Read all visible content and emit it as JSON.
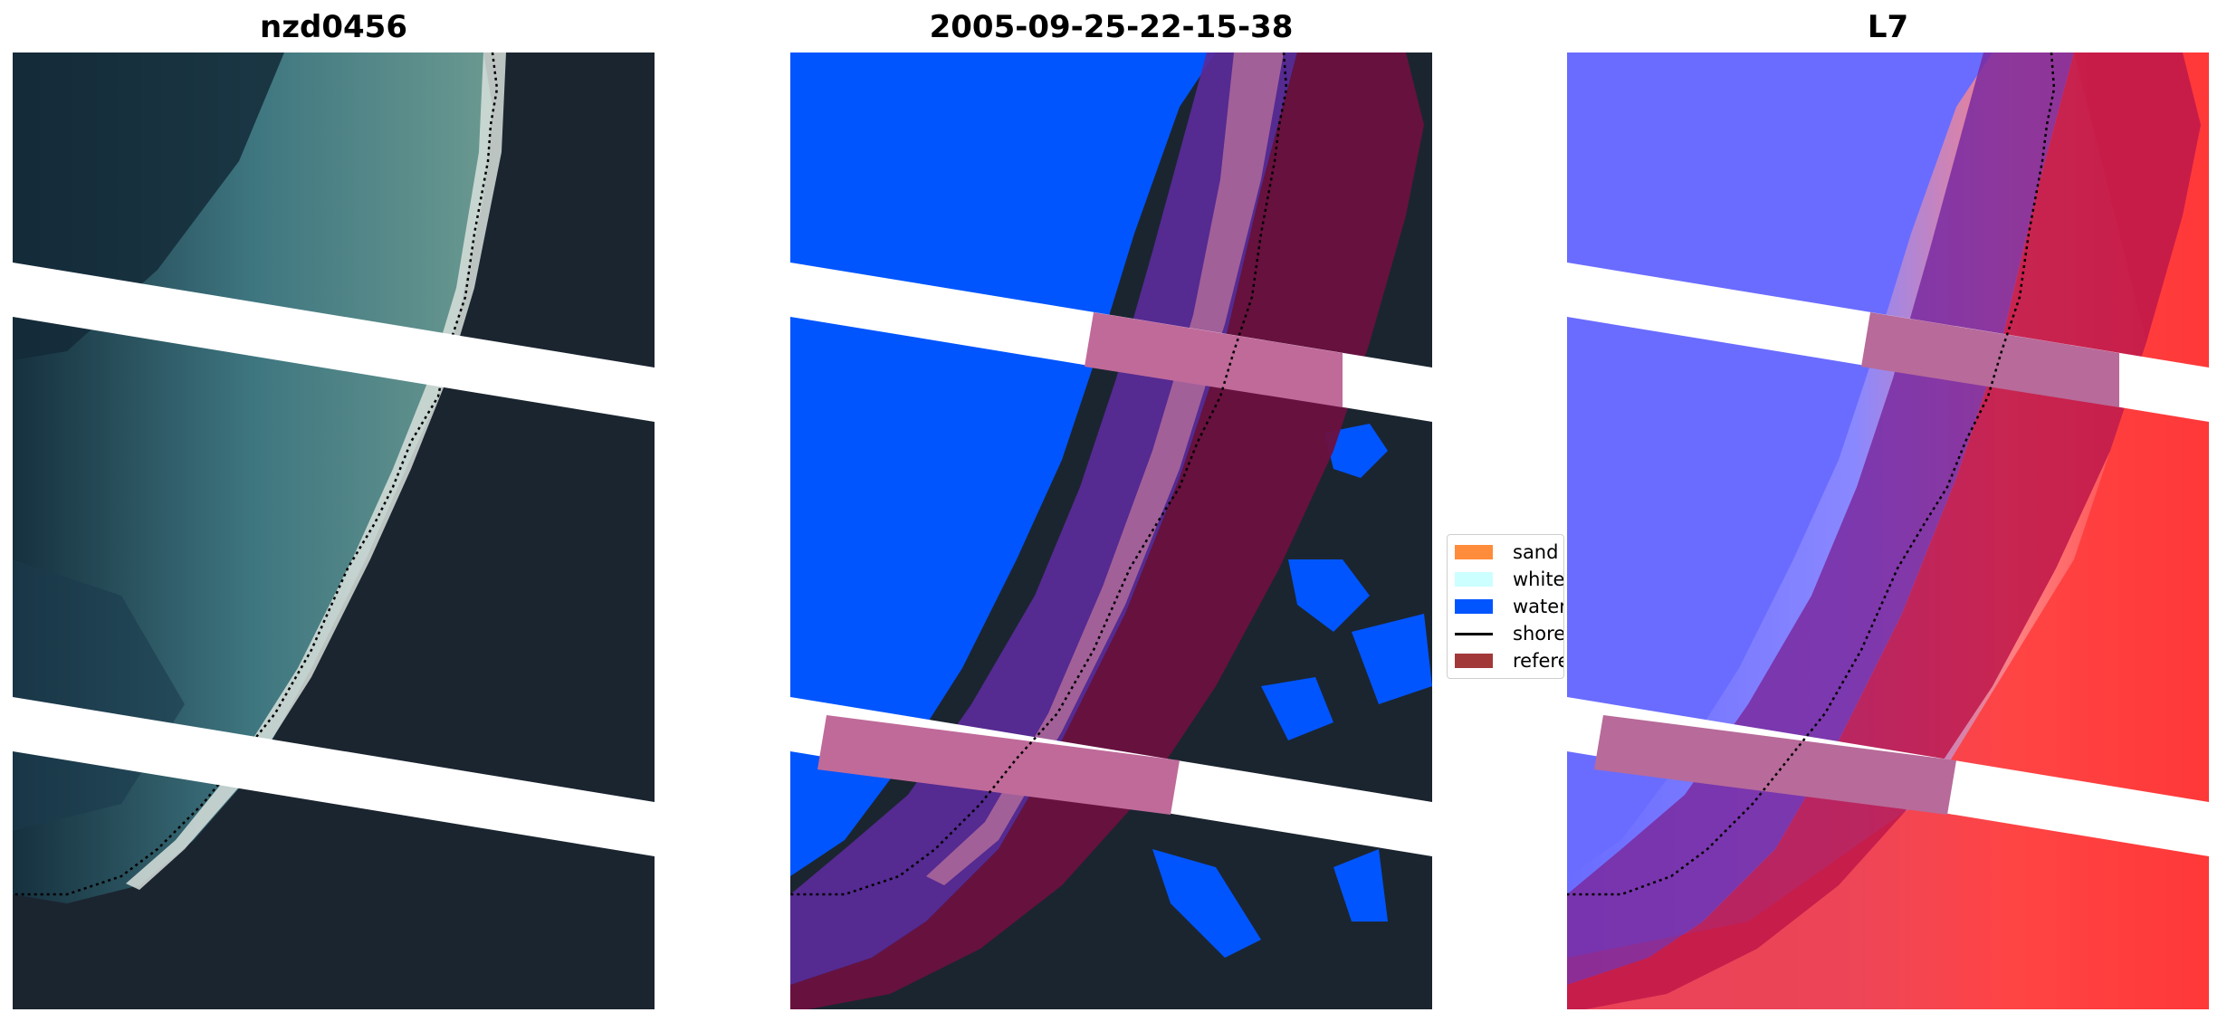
{
  "panels": [
    {
      "title": "nzd0456"
    },
    {
      "title": "2005-09-25-22-15-38"
    },
    {
      "title": "L7"
    }
  ],
  "legend": {
    "items": [
      {
        "label": "sand",
        "kind": "patch",
        "color": "#ff8c3a"
      },
      {
        "label": "whitewater",
        "kind": "patch",
        "color": "#ccffff"
      },
      {
        "label": "water",
        "kind": "patch",
        "color": "#0055ff"
      },
      {
        "label": "shoreline",
        "kind": "line",
        "color": "#000000"
      },
      {
        "label": "reference",
        "kind": "patch",
        "color": "#a33838"
      }
    ]
  },
  "colors": {
    "land_dark": "#1b2530",
    "sea_teal": "#4f8a8d",
    "water_class": "#0055ff",
    "buffer_purple": "#5a2a9a",
    "buffer_crimson": "#6b1040",
    "stripe_pink": "#c06a9a",
    "index_blue": "#6a6cff",
    "index_red": "#ff3030",
    "scanline_gap": "#ffffff"
  }
}
